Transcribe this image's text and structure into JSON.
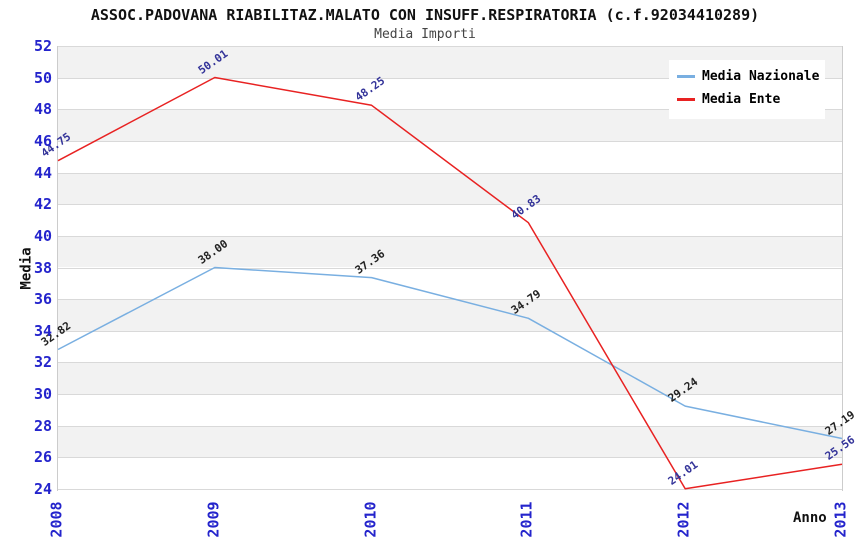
{
  "chart_data": {
    "type": "line",
    "title": "ASSOC.PADOVANA RIABILITAZ.MALATO CON INSUFF.RESPIRATORIA (c.f.92034410289)",
    "subtitle": "Media Importi",
    "categories": [
      "2008",
      "2009",
      "2010",
      "2011",
      "2012",
      "2013"
    ],
    "series": [
      {
        "name": "Media Nazionale",
        "color": "#79afe1",
        "label_color": "#222222",
        "values": [
          32.82,
          38.0,
          37.36,
          34.79,
          29.24,
          27.19
        ]
      },
      {
        "name": "Media Ente",
        "color": "#e82222",
        "label_color": "#333399",
        "values": [
          44.75,
          50.01,
          48.25,
          40.83,
          24.01,
          25.56
        ]
      }
    ],
    "xlabel": "Anno",
    "ylabel": "Media",
    "ylim": [
      24,
      52
    ],
    "ytick_step": 2,
    "yticks": [
      52,
      50,
      48,
      46,
      44,
      42,
      40,
      38,
      36,
      34,
      32,
      30,
      28,
      26,
      24
    ],
    "grid": true,
    "band_fill": "#f2f2f2",
    "gridline_color": "#d9d9d9",
    "tick_label_color": "#2424cc",
    "legend_position": "top-right",
    "point_labels_decimals": 2
  }
}
